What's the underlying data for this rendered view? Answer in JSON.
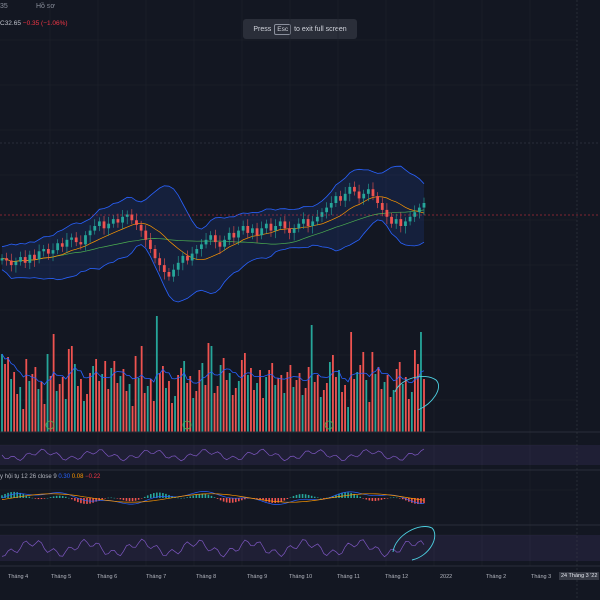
{
  "topbar": {
    "left_tab": "35",
    "profile_tab": "Hồ sơ"
  },
  "legend": {
    "ohlc_close": "C32.65",
    "change": "−0.35 (−1.06%)"
  },
  "fullscreen_toast": {
    "press": "Press",
    "key": "Esc",
    "rest": "to exit full screen"
  },
  "macd": {
    "label": "y hội tụ 12 26 close 9",
    "v1": "0.30",
    "v2": "0.08",
    "v3": "−0.22"
  },
  "xaxis": {
    "labels": [
      "Tháng 4",
      "Tháng 5",
      "Tháng 6",
      "Tháng 7",
      "Tháng 8",
      "Tháng 9",
      "Tháng 10",
      "Tháng 11",
      "Tháng 12",
      "2022",
      "Tháng 2",
      "Tháng 3"
    ],
    "cursor_date": "24 Tháng 3 '22"
  },
  "colors": {
    "background": "#131722",
    "up": "#26a69a",
    "down": "#ef5350",
    "bollinger": "#2962ff",
    "bollinger_fill": "#2962ff",
    "ma_fast": "#ff9800",
    "ma_slow": "#4caf50",
    "rsi_line": "#7e57c2",
    "rsi_band": "#7e57c2",
    "annotation": "#4dd0e1",
    "marker": "#4caf50"
  },
  "icons": {
    "marker": "circled-arrow-icon"
  },
  "chart_data": {
    "type": "candlestick",
    "price_series_close": [
      30.2,
      30.0,
      29.6,
      29.9,
      30.3,
      29.8,
      30.5,
      30.1,
      30.8,
      31.0,
      30.6,
      30.9,
      31.5,
      31.2,
      31.8,
      32.0,
      31.6,
      31.4,
      32.2,
      32.6,
      33.0,
      33.4,
      32.8,
      33.2,
      33.6,
      33.3,
      33.8,
      34.0,
      33.5,
      33.1,
      32.6,
      31.8,
      31.0,
      30.2,
      29.6,
      29.0,
      28.6,
      29.2,
      29.8,
      30.4,
      30.0,
      30.6,
      31.0,
      31.4,
      31.8,
      32.2,
      31.6,
      31.2,
      31.8,
      32.4,
      32.0,
      32.6,
      33.0,
      32.4,
      32.8,
      32.2,
      32.8,
      33.2,
      32.6,
      33.0,
      33.4,
      32.8,
      32.4,
      32.8,
      33.2,
      33.6,
      33.0,
      33.4,
      33.8,
      34.2,
      34.6,
      35.0,
      35.6,
      35.2,
      35.8,
      36.4,
      36.0,
      35.4,
      35.8,
      36.2,
      35.6,
      35.0,
      34.4,
      33.8,
      33.2,
      33.6,
      33.0,
      33.4,
      33.8,
      34.2,
      34.6,
      35.0
    ]
  }
}
